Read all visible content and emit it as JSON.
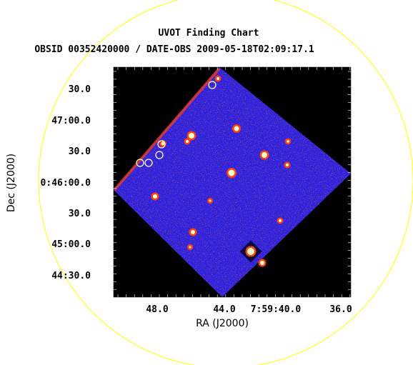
{
  "chart_data": {
    "type": "image",
    "title": "UVOT Finding Chart",
    "subtitle": "OBSID 00352420000 / DATE-OBS 2009-05-18T02:09:17.1",
    "xlabel": "RA (J2000)",
    "ylabel": "Dec (J2000)",
    "x_ticks": [
      "48.0",
      "44.0",
      "7:59:40.0",
      "36.0"
    ],
    "y_ticks": [
      "30.0",
      "47:00.0",
      "30.0",
      "0:46:00.0",
      "30.0",
      "45:00.0",
      "44:30.0"
    ],
    "overlay_circle_color": "#ffff00",
    "marker_color": "#ffffcc",
    "colormap": [
      "#000000",
      "#1a1aff",
      "#5a2aa0",
      "#ff2000",
      "#ffff40",
      "#ffffff"
    ]
  }
}
